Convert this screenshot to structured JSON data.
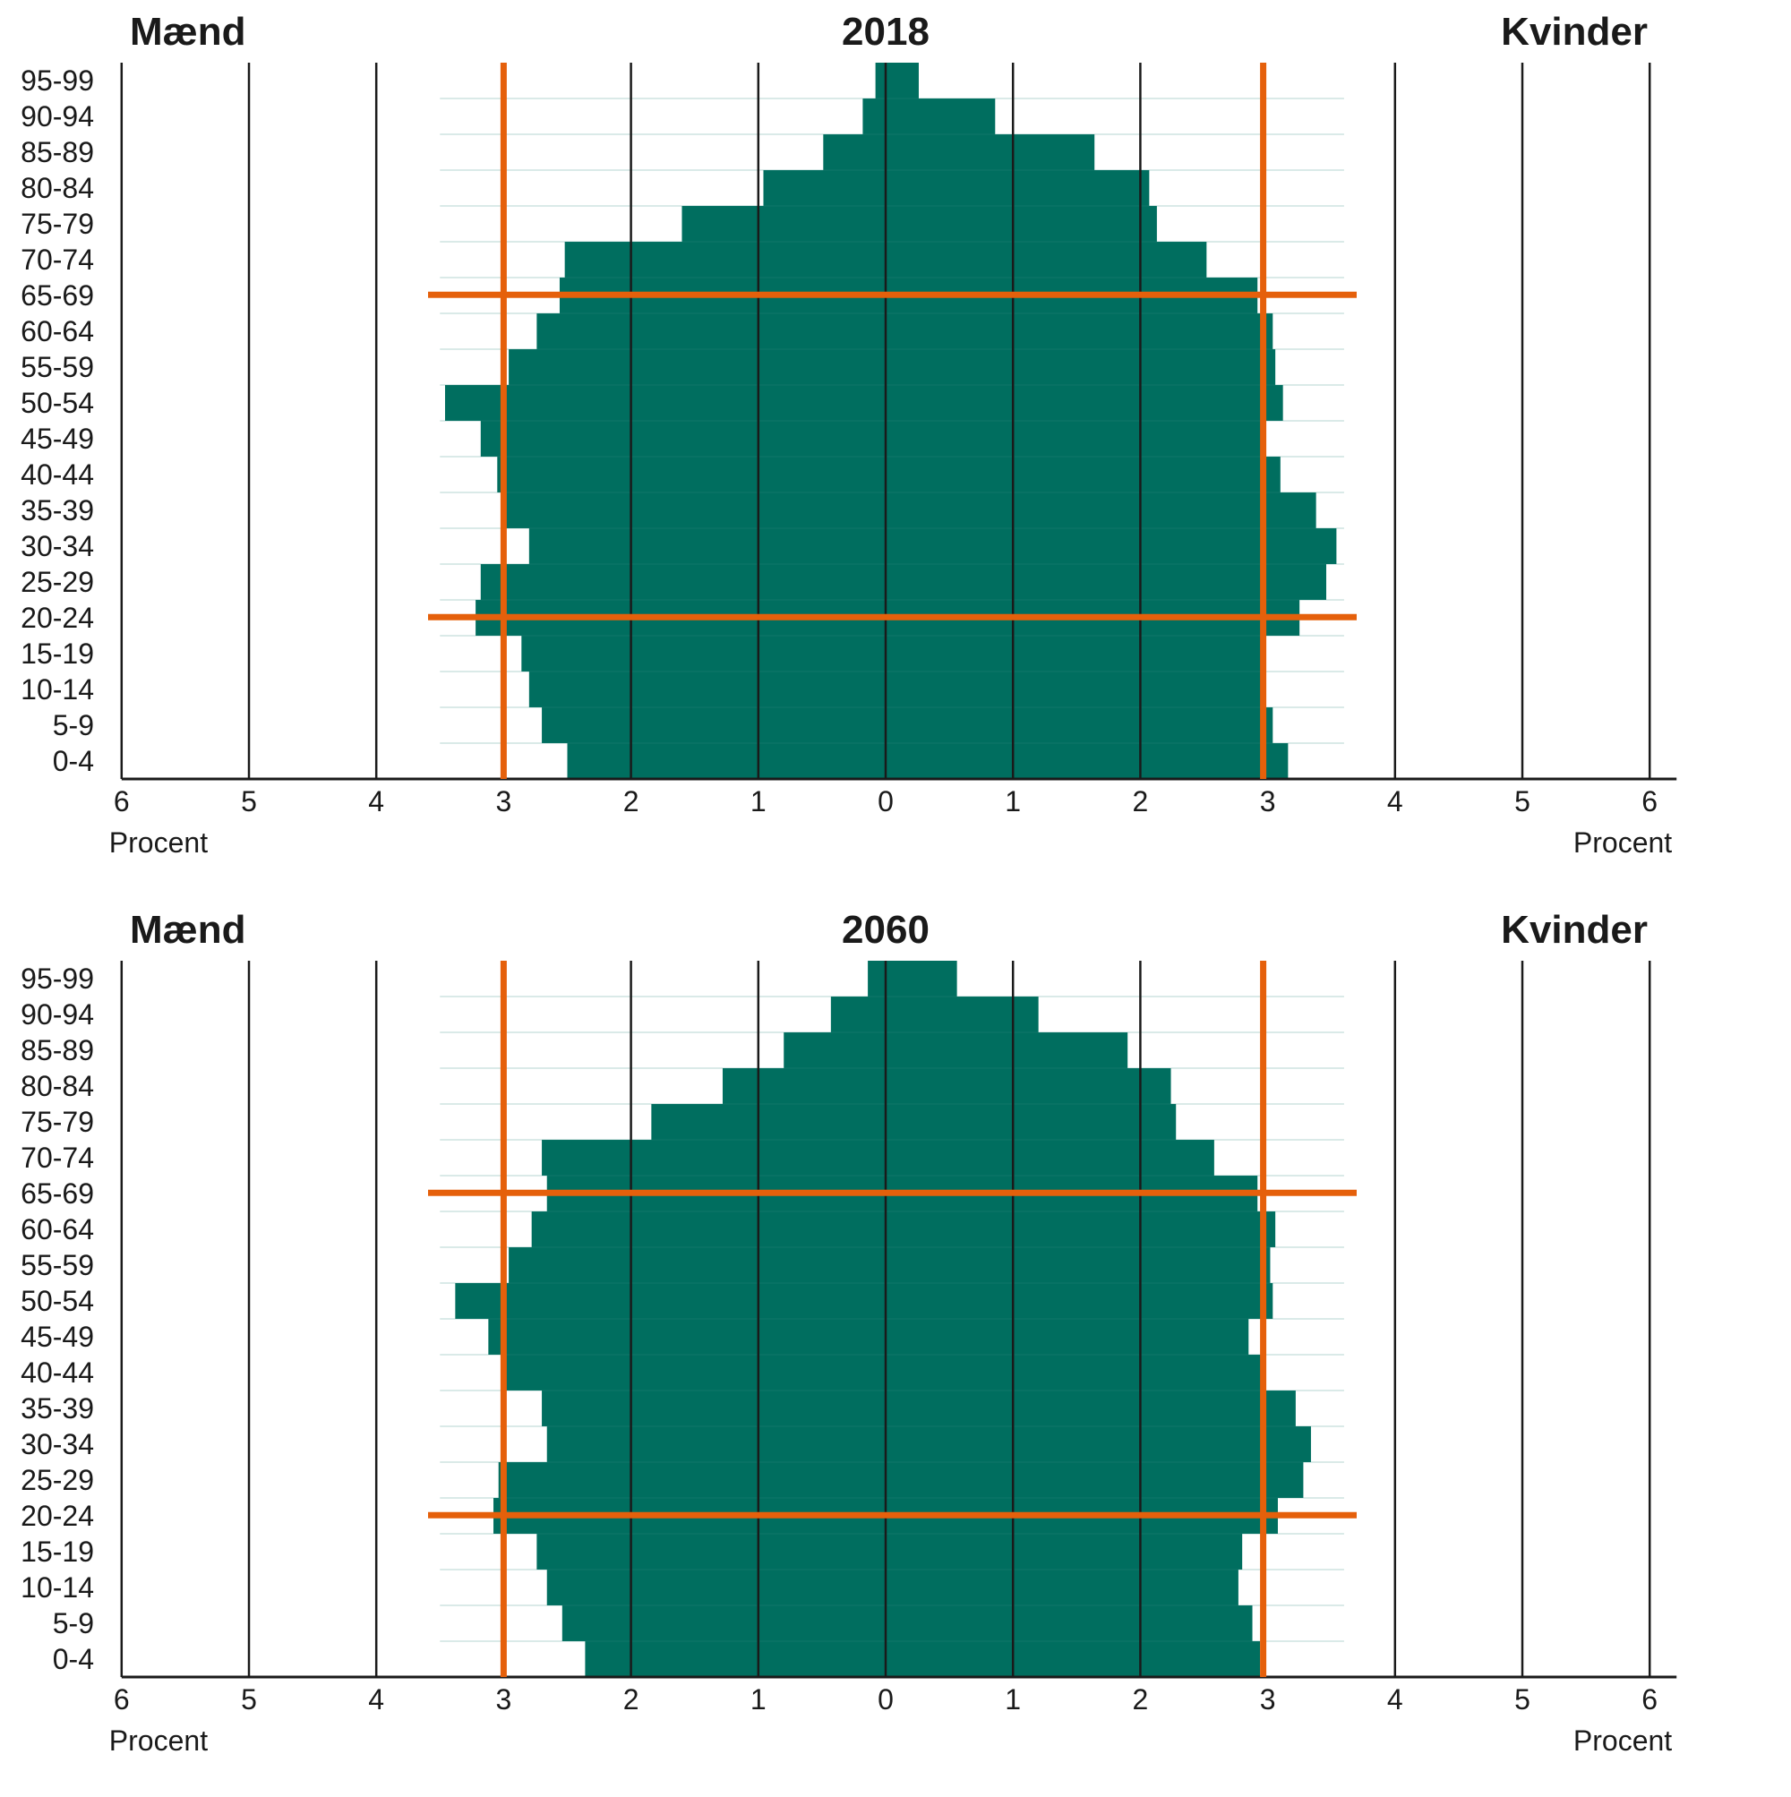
{
  "chart_data": [
    {
      "type": "population-pyramid",
      "title": "2018",
      "left_label": "Mænd",
      "right_label": "Kvinder",
      "xlabel_left": "Procent",
      "xlabel_right": "Procent",
      "x_ticks": [
        "6",
        "5",
        "4",
        "3",
        "2",
        "1",
        "0",
        "1",
        "2",
        "3",
        "4",
        "5",
        "6"
      ],
      "xlim": [
        0,
        6
      ],
      "categories": [
        "0-4",
        "5-9",
        "10-14",
        "15-19",
        "20-24",
        "25-29",
        "30-34",
        "35-39",
        "40-44",
        "45-49",
        "50-54",
        "55-59",
        "60-64",
        "65-69",
        "70-74",
        "75-79",
        "80-84",
        "85-89",
        "90-94",
        "95-99"
      ],
      "series": [
        {
          "name": "Mænd",
          "values": [
            2.5,
            2.7,
            2.8,
            2.86,
            3.22,
            3.18,
            2.8,
            2.98,
            3.05,
            3.18,
            3.46,
            2.96,
            2.74,
            2.56,
            2.52,
            1.6,
            0.96,
            0.49,
            0.18,
            0.08
          ]
        },
        {
          "name": "Kvinder",
          "values": [
            3.16,
            3.04,
            2.98,
            2.96,
            3.25,
            3.46,
            3.54,
            3.38,
            3.1,
            2.98,
            3.12,
            3.06,
            3.04,
            2.92,
            2.52,
            2.13,
            2.07,
            1.64,
            0.86,
            0.26
          ]
        }
      ],
      "reference_lines": {
        "x": [
          3
        ],
        "age_groups": [
          "20-24",
          "65-69"
        ]
      },
      "colors": {
        "bar": "#006e5f",
        "reference": "#e5600b",
        "grid": "#1a1a1a"
      }
    },
    {
      "type": "population-pyramid",
      "title": "2060",
      "left_label": "Mænd",
      "right_label": "Kvinder",
      "xlabel_left": "Procent",
      "xlabel_right": "Procent",
      "x_ticks": [
        "6",
        "5",
        "4",
        "3",
        "2",
        "1",
        "0",
        "1",
        "2",
        "3",
        "4",
        "5",
        "6"
      ],
      "xlim": [
        0,
        6
      ],
      "categories": [
        "0-4",
        "5-9",
        "10-14",
        "15-19",
        "20-24",
        "25-29",
        "30-34",
        "35-39",
        "40-44",
        "45-49",
        "50-54",
        "55-59",
        "60-64",
        "65-69",
        "70-74",
        "75-79",
        "80-84",
        "85-89",
        "90-94",
        "95-99"
      ],
      "series": [
        {
          "name": "Mænd",
          "values": [
            2.36,
            2.54,
            2.66,
            2.74,
            3.08,
            3.04,
            2.66,
            2.7,
            3.02,
            3.12,
            3.38,
            2.96,
            2.78,
            2.66,
            2.7,
            1.84,
            1.28,
            0.8,
            0.43,
            0.14
          ]
        },
        {
          "name": "Kvinder",
          "values": [
            2.94,
            2.88,
            2.77,
            2.8,
            3.08,
            3.28,
            3.34,
            3.22,
            2.98,
            2.85,
            3.04,
            3.02,
            3.06,
            2.92,
            2.58,
            2.28,
            2.24,
            1.9,
            1.2,
            0.56
          ]
        }
      ],
      "reference_lines": {
        "x": [
          3
        ],
        "age_groups": [
          "20-24",
          "65-69"
        ]
      },
      "colors": {
        "bar": "#006e5f",
        "reference": "#e5600b",
        "grid": "#1a1a1a"
      }
    }
  ]
}
